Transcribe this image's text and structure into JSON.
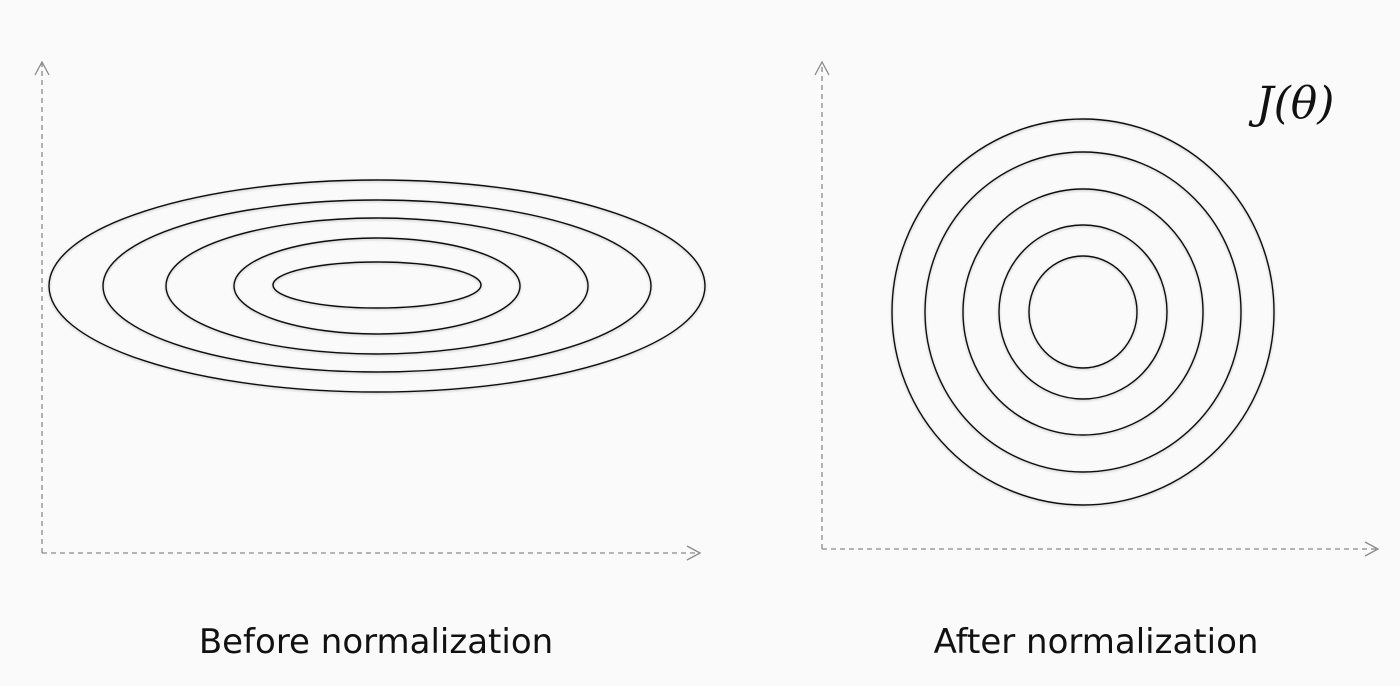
{
  "panels": {
    "before": {
      "caption": "Before normalization",
      "contour_count": 5
    },
    "after": {
      "caption": "After normalization",
      "contour_count": 5
    }
  },
  "formula": "J(θ)"
}
